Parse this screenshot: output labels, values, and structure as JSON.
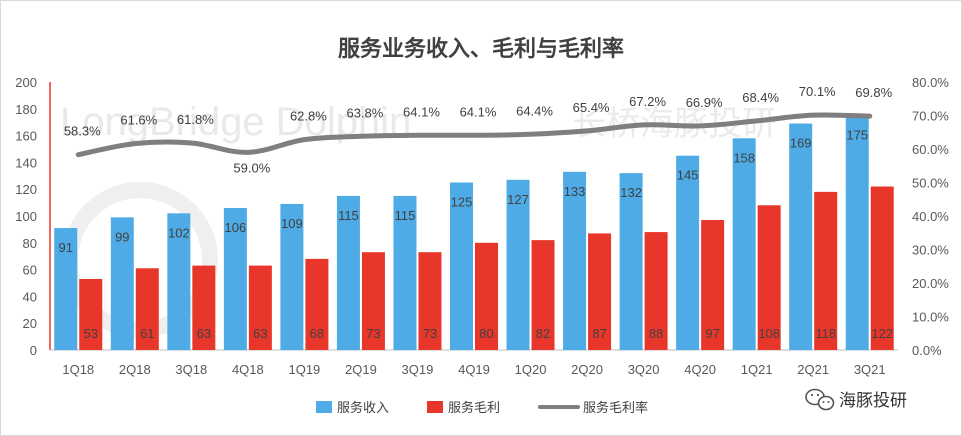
{
  "chart_data": {
    "type": "bar",
    "title": "服务业务收入、毛利与毛利率",
    "categories": [
      "1Q18",
      "2Q18",
      "3Q18",
      "4Q18",
      "1Q19",
      "2Q19",
      "3Q19",
      "4Q19",
      "1Q20",
      "2Q20",
      "3Q20",
      "4Q20",
      "1Q21",
      "2Q21",
      "3Q21"
    ],
    "series": [
      {
        "name": "服务收入",
        "type": "bar",
        "axis": "left",
        "color": "#4EABE6",
        "values": [
          91,
          99,
          102,
          106,
          109,
          115,
          115,
          125,
          127,
          133,
          132,
          145,
          158,
          169,
          175
        ]
      },
      {
        "name": "服务毛利",
        "type": "bar",
        "axis": "left",
        "color": "#E8372A",
        "values": [
          53,
          61,
          63,
          63,
          68,
          73,
          73,
          80,
          82,
          87,
          88,
          97,
          108,
          118,
          122
        ]
      },
      {
        "name": "服务毛利率",
        "type": "line",
        "axis": "right",
        "color": "#7F7F7F",
        "values": [
          58.3,
          61.6,
          61.8,
          59.0,
          62.8,
          63.8,
          64.1,
          64.1,
          64.4,
          65.4,
          67.2,
          66.9,
          68.4,
          70.1,
          69.8
        ],
        "labels": [
          "58.3%",
          "61.6%",
          "61.8%",
          "59.0%",
          "62.8%",
          "63.8%",
          "64.1%",
          "64.1%",
          "64.4%",
          "65.4%",
          "67.2%",
          "66.9%",
          "68.4%",
          "70.1%",
          "69.8%"
        ]
      }
    ],
    "y_left": {
      "min": 0,
      "max": 200,
      "step": 20,
      "ticks": [
        "0",
        "20",
        "40",
        "60",
        "80",
        "100",
        "120",
        "140",
        "160",
        "180",
        "200"
      ]
    },
    "y_right": {
      "min": 0,
      "max": 80,
      "step": 10,
      "ticks": [
        "0.0%",
        "10.0%",
        "20.0%",
        "30.0%",
        "40.0%",
        "50.0%",
        "60.0%",
        "70.0%",
        "80.0%"
      ]
    },
    "grid": false,
    "legend_position": "bottom",
    "left_axis_color": "#E8372A"
  },
  "watermark": {
    "text_en": "LongBridge Dolphin",
    "text_cn": "长桥海豚投研"
  },
  "branding": {
    "name": "海豚投研",
    "icon": "wechat-icon"
  }
}
